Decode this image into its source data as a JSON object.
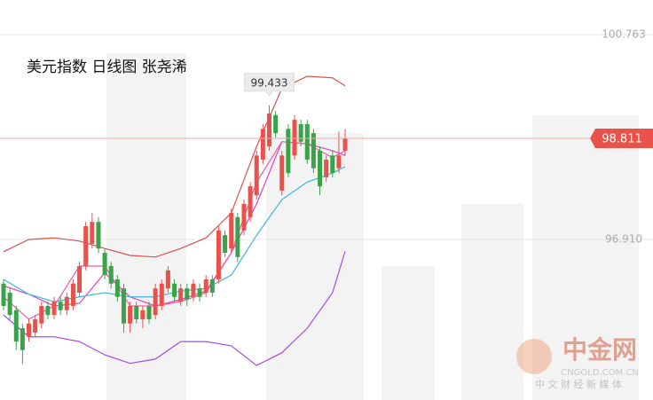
{
  "chart_data": {
    "type": "candlestick",
    "title": "美元指数 日线图 张尧浠",
    "ylim": [
      93.891,
      101.414
    ],
    "xlim": [
      -0.561,
      92.7
    ],
    "yticks": [
      100.763,
      {
        "value": 96.91,
        "label": "96.910"
      }
    ],
    "grid": true,
    "up_color": "#e8524a",
    "down_color": "#3aa34a",
    "open": [
      96.08,
      95.91,
      95.58,
      95.24,
      95.08,
      95.16,
      95.33,
      95.66,
      95.49,
      95.74,
      95.58,
      95.66,
      95.91,
      96.41,
      96.83,
      97.24,
      96.66,
      96.41,
      96.16,
      95.99,
      95.33,
      95.66,
      95.41,
      95.66,
      95.49,
      95.66,
      95.99,
      96.08,
      95.74,
      95.99,
      95.83,
      95.99,
      95.91,
      96.16,
      96.16,
      96.99,
      96.74,
      97.33,
      97.08,
      97.33,
      97.74,
      98.41,
      98.66,
      99.25,
      97.83,
      98.99,
      98.49,
      99.08,
      99.08,
      98.91,
      98.58,
      98.08,
      98.49,
      98.25,
      98.58
    ],
    "high": [
      96.16,
      95.99,
      95.66,
      95.33,
      95.41,
      95.49,
      95.74,
      95.74,
      95.83,
      95.83,
      95.91,
      96.16,
      96.49,
      97.24,
      97.41,
      97.33,
      96.74,
      96.49,
      96.24,
      96.08,
      95.74,
      95.74,
      95.66,
      95.74,
      96.08,
      96.16,
      96.41,
      96.16,
      96.08,
      96.08,
      96.16,
      96.08,
      96.24,
      96.24,
      97.16,
      97.08,
      97.49,
      97.41,
      97.66,
      97.99,
      98.58,
      99.08,
      99.433,
      99.33,
      98.58,
      99.08,
      99.25,
      99.16,
      99.16,
      98.99,
      98.66,
      98.49,
      98.58,
      98.94,
      98.99
    ],
    "low": [
      95.58,
      95.41,
      94.83,
      94.57,
      94.99,
      95.08,
      95.24,
      95.41,
      95.41,
      95.49,
      95.49,
      95.58,
      95.83,
      96.33,
      96.74,
      96.66,
      96.16,
      95.99,
      95.74,
      95.16,
      95.16,
      95.33,
      95.24,
      95.33,
      95.41,
      95.58,
      95.91,
      95.74,
      95.66,
      95.66,
      95.74,
      95.74,
      95.83,
      95.83,
      96.08,
      96.58,
      96.66,
      96.49,
      96.99,
      97.24,
      97.66,
      98.33,
      98.58,
      98.83,
      97.74,
      98.08,
      98.41,
      98.66,
      98.33,
      98.16,
      97.74,
      97.99,
      98.08,
      98.16,
      98.49
    ],
    "close": [
      95.66,
      95.49,
      94.99,
      94.83,
      95.33,
      95.41,
      95.66,
      95.49,
      95.74,
      95.58,
      95.83,
      96.08,
      96.41,
      97.16,
      97.24,
      96.74,
      96.24,
      96.08,
      95.83,
      95.33,
      95.66,
      95.41,
      95.58,
      95.41,
      95.99,
      96.08,
      96.33,
      95.83,
      95.99,
      95.78,
      96.08,
      95.83,
      96.16,
      95.91,
      97.08,
      96.66,
      97.41,
      96.58,
      97.58,
      97.91,
      98.49,
      98.99,
      99.28,
      98.91,
      98.49,
      98.16,
      99.16,
      98.75,
      98.41,
      98.25,
      97.91,
      98.41,
      98.16,
      98.49,
      98.811
    ],
    "series": [
      {
        "color": "#d9534f",
        "x": [
          0,
          4,
          8,
          12,
          16,
          20,
          24,
          28,
          32,
          36,
          40,
          44,
          48,
          52,
          54
        ],
        "values": [
          96.68,
          96.91,
          96.94,
          96.88,
          96.74,
          96.61,
          96.58,
          96.74,
          96.94,
          97.41,
          98.66,
          99.75,
          99.98,
          99.95,
          99.8
        ]
      },
      {
        "color": "#e23fc0",
        "x": [
          0,
          4,
          8,
          12,
          16,
          20,
          24,
          28,
          32,
          36,
          40,
          44,
          48,
          52,
          54
        ],
        "values": [
          96.04,
          95.88,
          95.66,
          95.71,
          96.28,
          95.83,
          95.66,
          95.78,
          95.94,
          96.66,
          97.58,
          98.75,
          98.71,
          98.58,
          98.49
        ]
      },
      {
        "color": "#a64de0",
        "x": [
          0,
          4,
          8,
          12,
          16,
          20,
          24,
          28,
          32,
          36,
          40,
          44,
          48,
          52,
          54
        ],
        "values": [
          95.49,
          95.08,
          95.08,
          94.99,
          94.74,
          94.58,
          94.66,
          94.99,
          94.99,
          94.91,
          94.54,
          94.78,
          95.24,
          95.91,
          96.69
        ]
      },
      {
        "color": "#3ab6e0",
        "x": [
          0,
          4,
          8,
          12,
          16,
          20,
          24,
          28,
          32,
          36,
          40,
          44,
          48,
          52,
          54
        ],
        "values": [
          96.16,
          95.88,
          95.74,
          95.83,
          95.91,
          95.83,
          95.83,
          95.94,
          95.99,
          96.24,
          96.99,
          97.66,
          97.99,
          98.16,
          98.28
        ]
      },
      {
        "color": "#f25aa8",
        "x": [
          0,
          4,
          8,
          12,
          16,
          20,
          24,
          28,
          32,
          36,
          40,
          44,
          48,
          52,
          54
        ],
        "values": [
          95.83,
          95.41,
          95.66,
          96.41,
          96.41,
          95.66,
          95.66,
          95.74,
          95.91,
          96.66,
          97.99,
          98.75,
          98.71,
          98.45,
          98.58
        ]
      }
    ],
    "last_price": 98.811,
    "annotations": [
      {
        "text": "99.433",
        "x": 42,
        "y": 99.433
      }
    ],
    "watermark": {
      "name": "中金网",
      "url": "CNGOLD.COM.CN",
      "tagline": "中 文 财 经 新 媒 体"
    }
  }
}
